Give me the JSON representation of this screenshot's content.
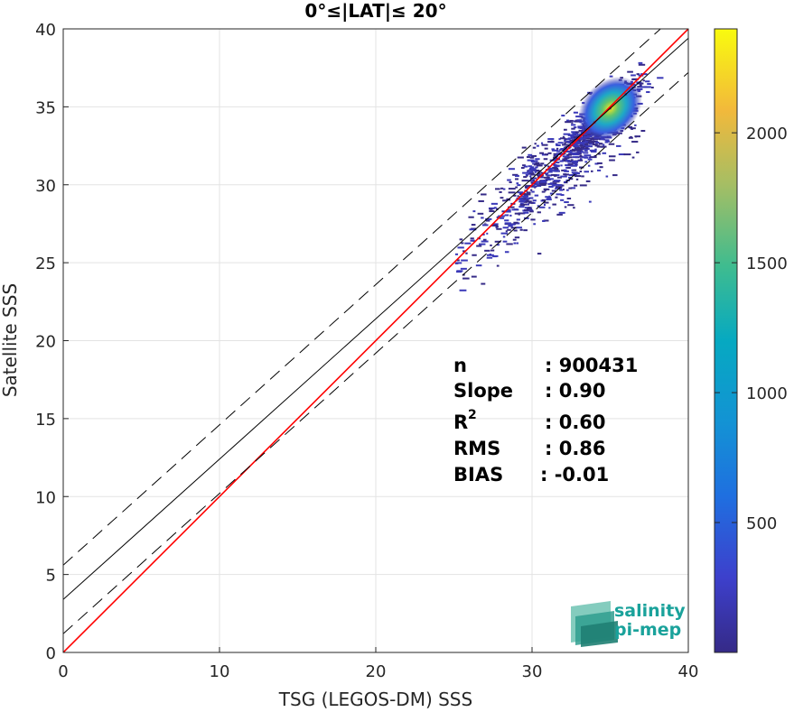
{
  "chart_data": {
    "type": "heatmap",
    "title": "0°≤|LAT|≤ 20°",
    "xlabel": "TSG (LEGOS-DM) SSS",
    "ylabel": "Satellite SSS",
    "xlim": [
      0,
      40
    ],
    "ylim": [
      0,
      40
    ],
    "xticks": [
      0,
      10,
      20,
      30,
      40
    ],
    "yticks": [
      0,
      5,
      10,
      15,
      20,
      25,
      30,
      35,
      40
    ],
    "grid": true,
    "colorbar": {
      "min": 0,
      "max": 2400,
      "ticks": [
        500,
        1000,
        1500,
        2000
      ],
      "colormap": "parula"
    },
    "lines": [
      {
        "role": "one-to-one",
        "color": "#ff0000",
        "style": "solid",
        "slope": 1.0,
        "intercept": 0.0
      },
      {
        "role": "regression",
        "color": "#000000",
        "style": "solid",
        "slope": 0.9,
        "intercept": 3.4
      },
      {
        "role": "regression-upper",
        "color": "#000000",
        "style": "dashed",
        "slope": 0.9,
        "intercept": 5.6
      },
      {
        "role": "regression-lower",
        "color": "#000000",
        "style": "dashed",
        "slope": 0.9,
        "intercept": 1.2
      }
    ],
    "density": {
      "description_points": [
        {
          "x": 35.0,
          "y": 34.9,
          "count": 2200
        },
        {
          "x": 34.0,
          "y": 34.0,
          "count": 1200
        },
        {
          "x": 36.0,
          "y": 35.8,
          "count": 1000
        },
        {
          "x": 33.0,
          "y": 33.0,
          "count": 500
        },
        {
          "x": 31.0,
          "y": 30.5,
          "count": 150
        },
        {
          "x": 29.0,
          "y": 29.0,
          "count": 40
        },
        {
          "x": 27.0,
          "y": 27.5,
          "count": 10
        }
      ]
    },
    "stats": {
      "n": {
        "label": "n",
        "value": ": 900431"
      },
      "slope": {
        "label": "Slope",
        "value": ": 0.90"
      },
      "r2": {
        "label": "R",
        "sup": "2",
        "value": ": 0.60"
      },
      "rms": {
        "label": "RMS",
        "value": ": 0.86"
      },
      "bias": {
        "label": "BIAS",
        "value": ": -0.01"
      }
    }
  },
  "logo": {
    "line1": "salinity",
    "line2": "pi-mep"
  }
}
